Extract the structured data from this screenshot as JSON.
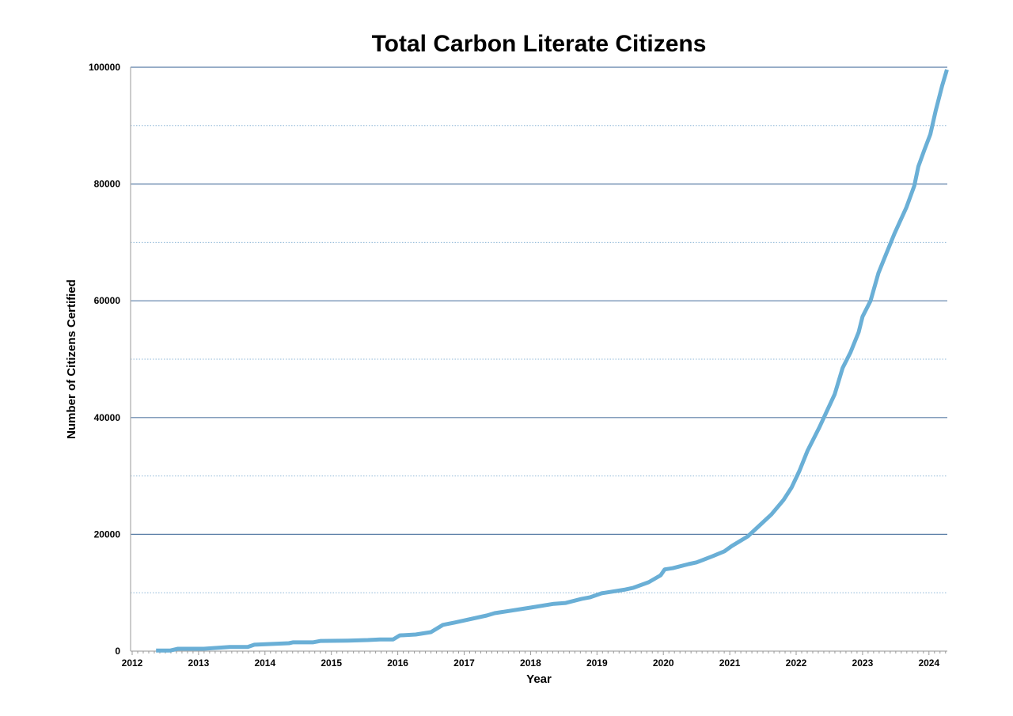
{
  "chart_data": {
    "type": "line",
    "title": "Total Carbon Literate Citizens",
    "xlabel": "Year",
    "ylabel": "Number of Citizens Certified",
    "xlim": [
      2012,
      2024.3
    ],
    "ylim": [
      0,
      100000
    ],
    "x_ticks": [
      "2012",
      "2013",
      "2014",
      "2015",
      "2016",
      "2017",
      "2018",
      "2019",
      "2020",
      "2021",
      "2022",
      "2023",
      "2024"
    ],
    "y_ticks": [
      "0",
      "20000",
      "40000",
      "60000",
      "80000",
      "100000"
    ],
    "grid": {
      "major": true,
      "minor_dotted": true
    },
    "colors": {
      "line": "#6aafd6",
      "major_grid": "#5a7ea6",
      "minor_grid": "#8fb8d8"
    },
    "series": [
      {
        "name": "Total Carbon Literate Citizens",
        "x": [
          2012.36,
          2012.57,
          2012.69,
          2013.08,
          2013.47,
          2013.74,
          2013.84,
          2014.36,
          2014.42,
          2014.72,
          2014.84,
          2015.25,
          2015.55,
          2015.73,
          2015.93,
          2016.03,
          2016.27,
          2016.5,
          2016.68,
          2016.86,
          2017.34,
          2017.46,
          2018.0,
          2018.35,
          2018.53,
          2018.77,
          2018.89,
          2019.07,
          2019.43,
          2019.55,
          2019.78,
          2019.96,
          2020.02,
          2020.14,
          2020.38,
          2020.5,
          2020.74,
          2020.92,
          2021.03,
          2021.27,
          2021.45,
          2021.63,
          2021.81,
          2021.93,
          2022.05,
          2022.17,
          2022.35,
          2022.46,
          2022.58,
          2022.7,
          2022.82,
          2022.94,
          2023.0,
          2023.12,
          2023.24,
          2023.36,
          2023.48,
          2023.66,
          2023.78,
          2023.84,
          2023.93,
          2024.02,
          2024.1,
          2024.2,
          2024.27
        ],
        "y": [
          100,
          100,
          400,
          400,
          700,
          700,
          1100,
          1350,
          1500,
          1500,
          1750,
          1800,
          1900,
          2000,
          2000,
          2700,
          2850,
          3250,
          4500,
          4900,
          6100,
          6500,
          7450,
          8100,
          8250,
          8950,
          9200,
          9900,
          10550,
          10850,
          11800,
          13000,
          14000,
          14200,
          14900,
          15200,
          16250,
          17100,
          18000,
          19650,
          21550,
          23450,
          25900,
          28000,
          30900,
          34300,
          38350,
          41050,
          44000,
          48500,
          51200,
          54600,
          57300,
          60000,
          64750,
          68150,
          71500,
          76000,
          79700,
          83000,
          85800,
          88500,
          92500,
          96900,
          99600
        ]
      }
    ]
  }
}
